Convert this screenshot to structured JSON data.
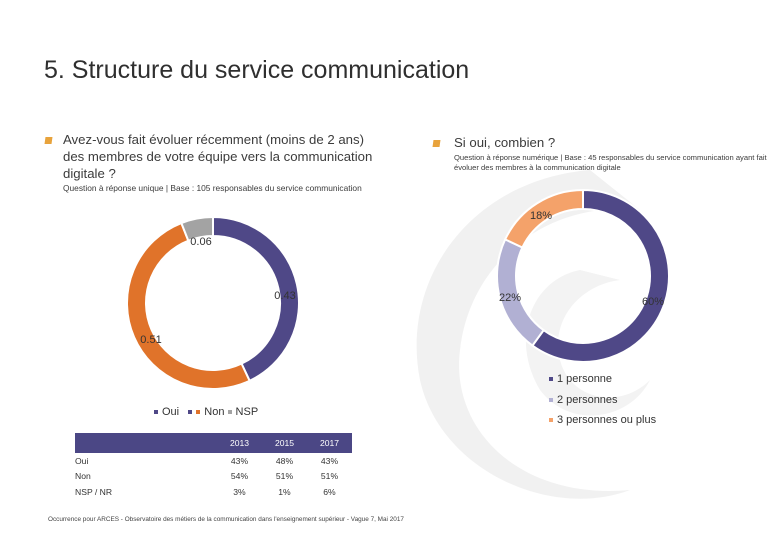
{
  "slide": {
    "title": "5. Structure du service communication",
    "source": "Occurrence pour ARCES - Observatoire des métiers de la communication dans l'enseignement supérieur - Vague 7, Mai 2017"
  },
  "left_panel": {
    "question": "Avez-vous fait évoluer récemment (moins de 2 ans) des membres de votre équipe vers la communication digitale ?",
    "subtitle": "Question à réponse unique | Base : 105 responsables du service communication"
  },
  "right_panel": {
    "question": "Si oui, combien ?",
    "subtitle": "Question à réponse numérique | Base : 45 responsables du service communication ayant fait évoluer des membres à la communication digitale"
  },
  "chart_data": [
    {
      "type": "pie",
      "donut": true,
      "labels": [
        "Oui",
        "Non",
        "NSP"
      ],
      "values": [
        0.43,
        0.51,
        0.06
      ],
      "data_labels": [
        "0.43",
        "0.51",
        "0.06"
      ],
      "colors": [
        "#4f4887",
        "#e0732a",
        "#a3a3a3"
      ],
      "legend": [
        {
          "label": "Oui",
          "color": "#4f4887"
        },
        {
          "label": "Non",
          "color": "#e0732a"
        },
        {
          "label": "NSP",
          "color": "#a3a3a3"
        }
      ]
    },
    {
      "type": "pie",
      "donut": true,
      "labels": [
        "1 personne",
        "2 personnes",
        "3 personnes ou plus"
      ],
      "values": [
        60,
        22,
        18
      ],
      "data_labels": [
        "60%",
        "22%",
        "18%"
      ],
      "colors": [
        "#4f4887",
        "#b1b0d3",
        "#f4a26a"
      ],
      "legend": [
        {
          "label": "1 personne",
          "color": "#4f4887"
        },
        {
          "label": "2 personnes",
          "color": "#b1b0d3"
        },
        {
          "label": "3 personnes ou plus",
          "color": "#f4a26a"
        }
      ]
    }
  ],
  "table": {
    "headers": [
      "2013",
      "2015",
      "2017"
    ],
    "rows": [
      {
        "label": "Oui",
        "values": [
          "43%",
          "48%",
          "43%"
        ]
      },
      {
        "label": "Non",
        "values": [
          "54%",
          "51%",
          "51%"
        ]
      },
      {
        "label": "NSP / NR",
        "values": [
          "3%",
          "1%",
          "6%"
        ]
      }
    ]
  },
  "colors": {
    "bullet": "#e8a33c",
    "header_bg": "#4b4785",
    "watermark": "#f1f1f1"
  }
}
